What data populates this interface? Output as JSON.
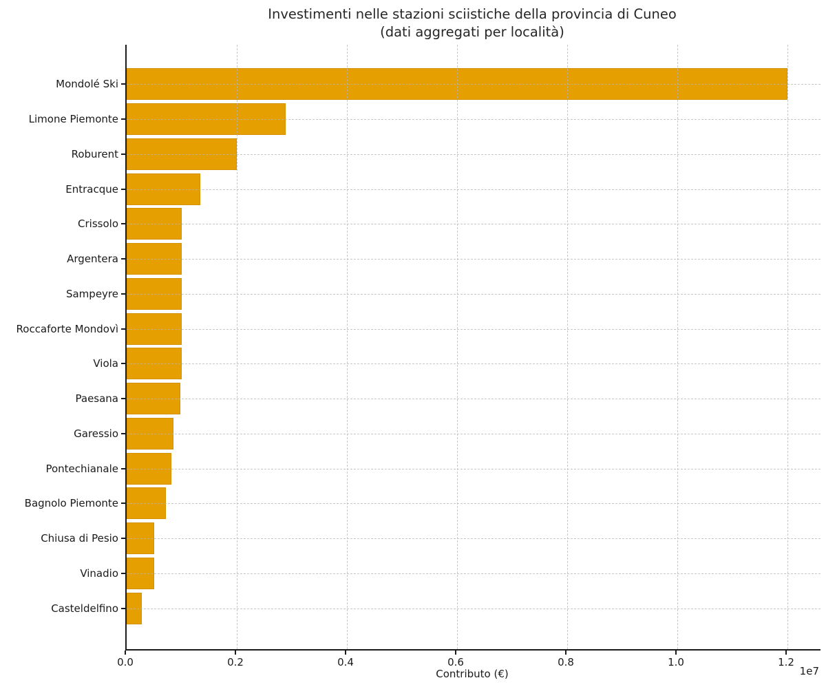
{
  "figure": {
    "background": "#ffffff",
    "text_color": "#1a1a1a"
  },
  "chart_data": {
    "type": "bar",
    "orientation": "horizontal",
    "title": "Investimenti nelle stazioni sciistiche della provincia di Cuneo",
    "subtitle": "(dati aggregati per località)",
    "xlabel": "Contributo (€)",
    "axis_offset_label": "1e7",
    "categories": [
      "Mondolé Ski",
      "Limone Piemonte",
      "Roburent",
      "Entracque",
      "Crissolo",
      "Argentera",
      "Sampeyre",
      "Roccaforte Mondovì",
      "Viola",
      "Paesana",
      "Garessio",
      "Pontechianale",
      "Bagnolo Piemonte",
      "Chiusa di Pesio",
      "Vinadio",
      "Casteldelfino"
    ],
    "values": [
      12000000,
      2890000,
      2000000,
      1340000,
      1000000,
      1000000,
      1000000,
      1000000,
      1000000,
      980000,
      850000,
      810000,
      710000,
      500000,
      500000,
      275000
    ],
    "xlim": [
      0,
      12600000
    ],
    "xticks": [
      0,
      2000000,
      4000000,
      6000000,
      8000000,
      10000000,
      12000000
    ],
    "xtick_labels": [
      "0.0",
      "0.2",
      "0.4",
      "0.6",
      "0.8",
      "1.0",
      "1.2"
    ],
    "grid": true,
    "grid_style": "dashed",
    "bar_color": "#E69F00",
    "bar_edge_color": "#AD7300",
    "grid_color": "#b4b4b4",
    "legend": false
  }
}
